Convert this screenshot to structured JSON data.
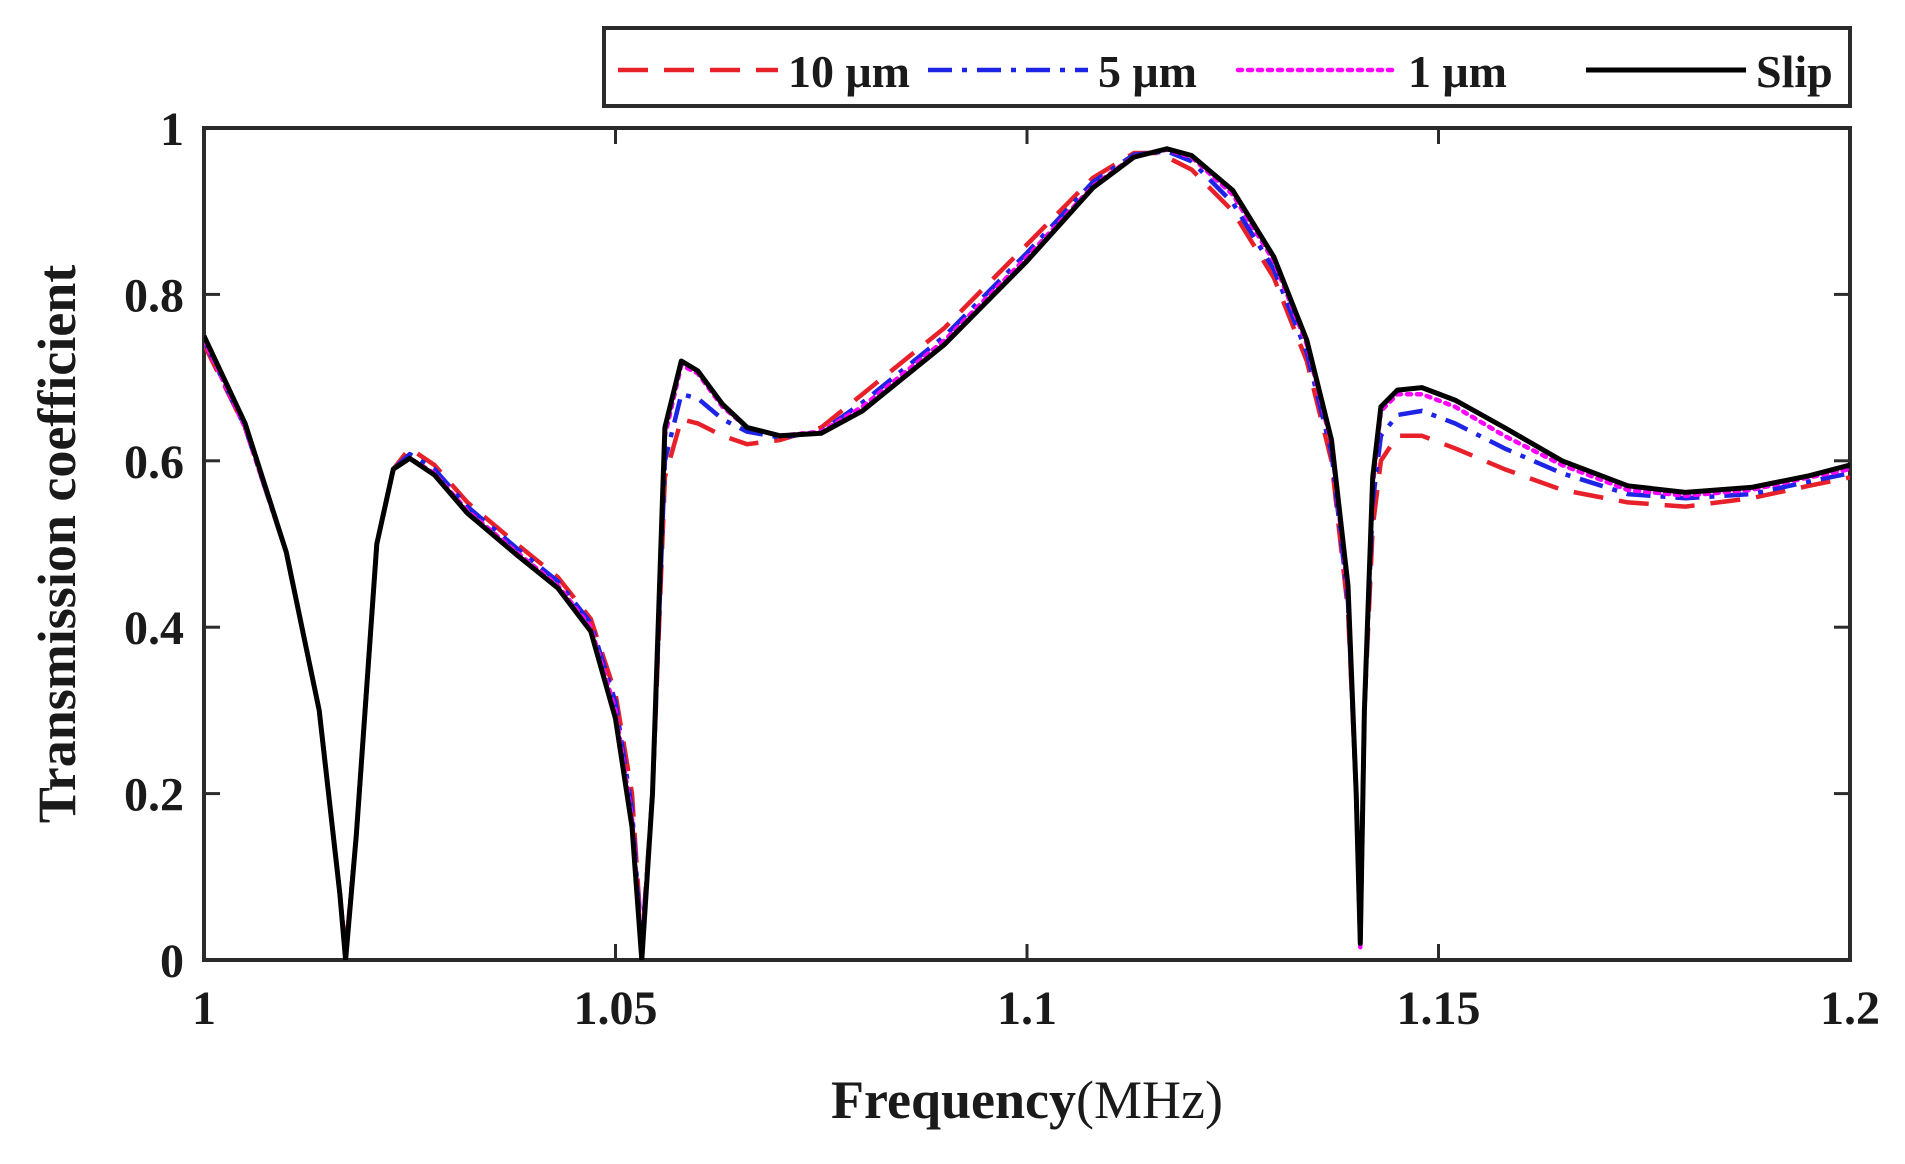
{
  "chart_data": {
    "type": "line",
    "title": "",
    "xlabel_bold": "Frequency",
    "xlabel_unit": "(MHz)",
    "ylabel": "Transmission coefficient",
    "xlim": [
      1,
      1.2
    ],
    "ylim": [
      0,
      1
    ],
    "x_ticks": [
      1,
      1.05,
      1.1,
      1.15,
      1.2
    ],
    "x_tick_labels": [
      "1",
      "1.05",
      "1.1",
      "1.15",
      "1.2"
    ],
    "y_ticks": [
      0,
      0.2,
      0.4,
      0.6,
      0.8,
      1
    ],
    "y_tick_labels": [
      "0",
      "0.2",
      "0.4",
      "0.6",
      "0.8",
      "1"
    ],
    "grid": false,
    "legend_position": "top, above plot, right-aligned",
    "series": [
      {
        "name": "10 μm",
        "color": "#e8202a",
        "style": "dashed",
        "points": [
          [
            1.0,
            0.74
          ],
          [
            1.005,
            0.64
          ],
          [
            1.01,
            0.49
          ],
          [
            1.014,
            0.3
          ],
          [
            1.0165,
            0.08
          ],
          [
            1.0172,
            0.01
          ],
          [
            1.0185,
            0.15
          ],
          [
            1.021,
            0.5
          ],
          [
            1.023,
            0.59
          ],
          [
            1.025,
            0.615
          ],
          [
            1.028,
            0.595
          ],
          [
            1.032,
            0.55
          ],
          [
            1.038,
            0.5
          ],
          [
            1.043,
            0.46
          ],
          [
            1.047,
            0.41
          ],
          [
            1.05,
            0.32
          ],
          [
            1.052,
            0.2
          ],
          [
            1.0532,
            0.02
          ],
          [
            1.0545,
            0.2
          ],
          [
            1.056,
            0.58
          ],
          [
            1.058,
            0.65
          ],
          [
            1.06,
            0.645
          ],
          [
            1.063,
            0.63
          ],
          [
            1.066,
            0.62
          ],
          [
            1.07,
            0.625
          ],
          [
            1.075,
            0.64
          ],
          [
            1.08,
            0.68
          ],
          [
            1.09,
            0.76
          ],
          [
            1.1,
            0.86
          ],
          [
            1.108,
            0.94
          ],
          [
            1.113,
            0.97
          ],
          [
            1.116,
            0.97
          ],
          [
            1.12,
            0.95
          ],
          [
            1.125,
            0.9
          ],
          [
            1.13,
            0.82
          ],
          [
            1.134,
            0.72
          ],
          [
            1.137,
            0.6
          ],
          [
            1.139,
            0.42
          ],
          [
            1.14,
            0.2
          ],
          [
            1.1405,
            0.03
          ],
          [
            1.141,
            0.3
          ],
          [
            1.142,
            0.52
          ],
          [
            1.143,
            0.6
          ],
          [
            1.145,
            0.63
          ],
          [
            1.148,
            0.63
          ],
          [
            1.152,
            0.615
          ],
          [
            1.158,
            0.59
          ],
          [
            1.165,
            0.565
          ],
          [
            1.173,
            0.55
          ],
          [
            1.18,
            0.545
          ],
          [
            1.188,
            0.555
          ],
          [
            1.195,
            0.57
          ],
          [
            1.2,
            0.58
          ]
        ]
      },
      {
        "name": "5 μm",
        "color": "#1d24e6",
        "style": "dash-dot",
        "points": [
          [
            1.0,
            0.745
          ],
          [
            1.005,
            0.64
          ],
          [
            1.01,
            0.49
          ],
          [
            1.014,
            0.3
          ],
          [
            1.0165,
            0.08
          ],
          [
            1.0172,
            0.005
          ],
          [
            1.0185,
            0.15
          ],
          [
            1.021,
            0.5
          ],
          [
            1.023,
            0.59
          ],
          [
            1.025,
            0.608
          ],
          [
            1.028,
            0.59
          ],
          [
            1.032,
            0.545
          ],
          [
            1.038,
            0.495
          ],
          [
            1.043,
            0.455
          ],
          [
            1.047,
            0.405
          ],
          [
            1.05,
            0.31
          ],
          [
            1.052,
            0.18
          ],
          [
            1.0532,
            0.015
          ],
          [
            1.0545,
            0.2
          ],
          [
            1.056,
            0.6
          ],
          [
            1.058,
            0.68
          ],
          [
            1.06,
            0.675
          ],
          [
            1.063,
            0.65
          ],
          [
            1.066,
            0.635
          ],
          [
            1.07,
            0.628
          ],
          [
            1.075,
            0.635
          ],
          [
            1.08,
            0.67
          ],
          [
            1.09,
            0.75
          ],
          [
            1.1,
            0.85
          ],
          [
            1.108,
            0.935
          ],
          [
            1.113,
            0.968
          ],
          [
            1.117,
            0.972
          ],
          [
            1.12,
            0.96
          ],
          [
            1.125,
            0.91
          ],
          [
            1.13,
            0.83
          ],
          [
            1.134,
            0.73
          ],
          [
            1.137,
            0.61
          ],
          [
            1.139,
            0.43
          ],
          [
            1.14,
            0.2
          ],
          [
            1.1405,
            0.025
          ],
          [
            1.141,
            0.3
          ],
          [
            1.142,
            0.55
          ],
          [
            1.143,
            0.63
          ],
          [
            1.145,
            0.655
          ],
          [
            1.148,
            0.66
          ],
          [
            1.152,
            0.645
          ],
          [
            1.158,
            0.615
          ],
          [
            1.165,
            0.585
          ],
          [
            1.173,
            0.56
          ],
          [
            1.18,
            0.555
          ],
          [
            1.188,
            0.56
          ],
          [
            1.195,
            0.575
          ],
          [
            1.2,
            0.585
          ]
        ]
      },
      {
        "name": "1 μm",
        "color": "#ff00ff",
        "style": "dotted",
        "points": [
          [
            1.0,
            0.745
          ],
          [
            1.005,
            0.64
          ],
          [
            1.01,
            0.49
          ],
          [
            1.014,
            0.3
          ],
          [
            1.0165,
            0.08
          ],
          [
            1.0172,
            0.005
          ],
          [
            1.0185,
            0.15
          ],
          [
            1.021,
            0.5
          ],
          [
            1.023,
            0.59
          ],
          [
            1.025,
            0.603
          ],
          [
            1.028,
            0.585
          ],
          [
            1.032,
            0.54
          ],
          [
            1.038,
            0.49
          ],
          [
            1.043,
            0.45
          ],
          [
            1.047,
            0.4
          ],
          [
            1.05,
            0.3
          ],
          [
            1.052,
            0.17
          ],
          [
            1.0532,
            0.01
          ],
          [
            1.0545,
            0.2
          ],
          [
            1.056,
            0.63
          ],
          [
            1.058,
            0.715
          ],
          [
            1.06,
            0.705
          ],
          [
            1.063,
            0.665
          ],
          [
            1.066,
            0.64
          ],
          [
            1.07,
            0.63
          ],
          [
            1.075,
            0.635
          ],
          [
            1.08,
            0.665
          ],
          [
            1.09,
            0.745
          ],
          [
            1.1,
            0.845
          ],
          [
            1.108,
            0.93
          ],
          [
            1.113,
            0.966
          ],
          [
            1.117,
            0.974
          ],
          [
            1.12,
            0.965
          ],
          [
            1.125,
            0.92
          ],
          [
            1.13,
            0.84
          ],
          [
            1.134,
            0.74
          ],
          [
            1.137,
            0.62
          ],
          [
            1.139,
            0.44
          ],
          [
            1.14,
            0.2
          ],
          [
            1.1405,
            0.015
          ],
          [
            1.141,
            0.3
          ],
          [
            1.142,
            0.57
          ],
          [
            1.143,
            0.66
          ],
          [
            1.145,
            0.68
          ],
          [
            1.148,
            0.68
          ],
          [
            1.152,
            0.665
          ],
          [
            1.158,
            0.63
          ],
          [
            1.165,
            0.595
          ],
          [
            1.173,
            0.565
          ],
          [
            1.18,
            0.558
          ],
          [
            1.188,
            0.565
          ],
          [
            1.195,
            0.58
          ],
          [
            1.2,
            0.59
          ]
        ]
      },
      {
        "name": "Slip",
        "color": "#000000",
        "style": "solid",
        "points": [
          [
            1.0,
            0.75
          ],
          [
            1.005,
            0.645
          ],
          [
            1.01,
            0.49
          ],
          [
            1.014,
            0.3
          ],
          [
            1.0165,
            0.08
          ],
          [
            1.0172,
            0.0
          ],
          [
            1.0185,
            0.15
          ],
          [
            1.021,
            0.5
          ],
          [
            1.023,
            0.59
          ],
          [
            1.025,
            0.603
          ],
          [
            1.028,
            0.583
          ],
          [
            1.032,
            0.537
          ],
          [
            1.038,
            0.487
          ],
          [
            1.043,
            0.447
          ],
          [
            1.047,
            0.395
          ],
          [
            1.05,
            0.29
          ],
          [
            1.052,
            0.16
          ],
          [
            1.0532,
            0.0
          ],
          [
            1.0545,
            0.2
          ],
          [
            1.056,
            0.64
          ],
          [
            1.058,
            0.72
          ],
          [
            1.06,
            0.708
          ],
          [
            1.063,
            0.668
          ],
          [
            1.066,
            0.64
          ],
          [
            1.07,
            0.63
          ],
          [
            1.075,
            0.633
          ],
          [
            1.08,
            0.66
          ],
          [
            1.09,
            0.74
          ],
          [
            1.1,
            0.84
          ],
          [
            1.108,
            0.928
          ],
          [
            1.113,
            0.965
          ],
          [
            1.117,
            0.975
          ],
          [
            1.12,
            0.967
          ],
          [
            1.125,
            0.925
          ],
          [
            1.13,
            0.845
          ],
          [
            1.134,
            0.745
          ],
          [
            1.137,
            0.625
          ],
          [
            1.139,
            0.45
          ],
          [
            1.14,
            0.2
          ],
          [
            1.1405,
            0.02
          ],
          [
            1.141,
            0.3
          ],
          [
            1.142,
            0.58
          ],
          [
            1.143,
            0.665
          ],
          [
            1.145,
            0.685
          ],
          [
            1.148,
            0.688
          ],
          [
            1.152,
            0.673
          ],
          [
            1.158,
            0.64
          ],
          [
            1.165,
            0.6
          ],
          [
            1.173,
            0.57
          ],
          [
            1.18,
            0.562
          ],
          [
            1.188,
            0.568
          ],
          [
            1.195,
            0.582
          ],
          [
            1.2,
            0.595
          ]
        ]
      }
    ]
  }
}
